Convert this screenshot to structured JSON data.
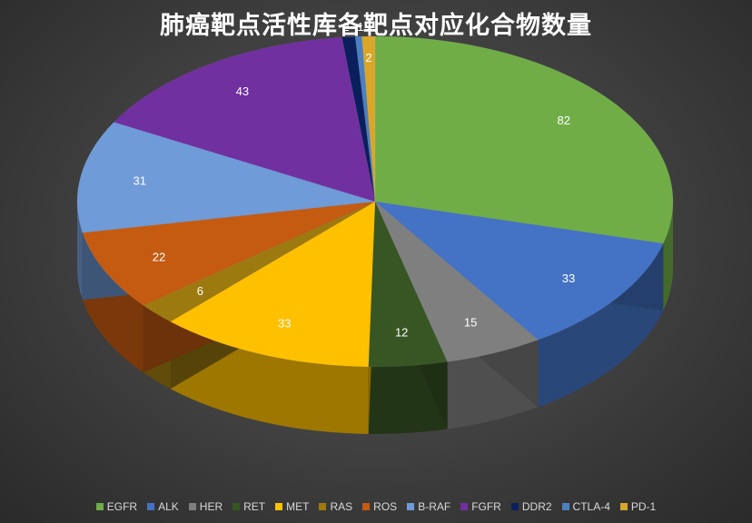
{
  "chart_data": {
    "type": "pie",
    "title": "肺癌靶点活性库各靶点对应化合物数量",
    "categories": [
      "EGFR",
      "ALK",
      "HER",
      "RET",
      "MET",
      "RAS",
      "ROS",
      "B-RAF",
      "FGFR",
      "DDR2",
      "CTLA-4",
      "PD-1"
    ],
    "values": [
      82,
      33,
      15,
      12,
      33,
      6,
      22,
      31,
      43,
      2,
      1,
      2
    ],
    "colors": [
      "#70ad47",
      "#4472c4",
      "#7f7f7f",
      "#375623",
      "#ffc000",
      "#9c7a10",
      "#c55a11",
      "#6f9bd8",
      "#7030a0",
      "#0b1f5c",
      "#4a7fc0",
      "#d9a62a"
    ],
    "legend_position": "bottom",
    "style": "3d"
  }
}
